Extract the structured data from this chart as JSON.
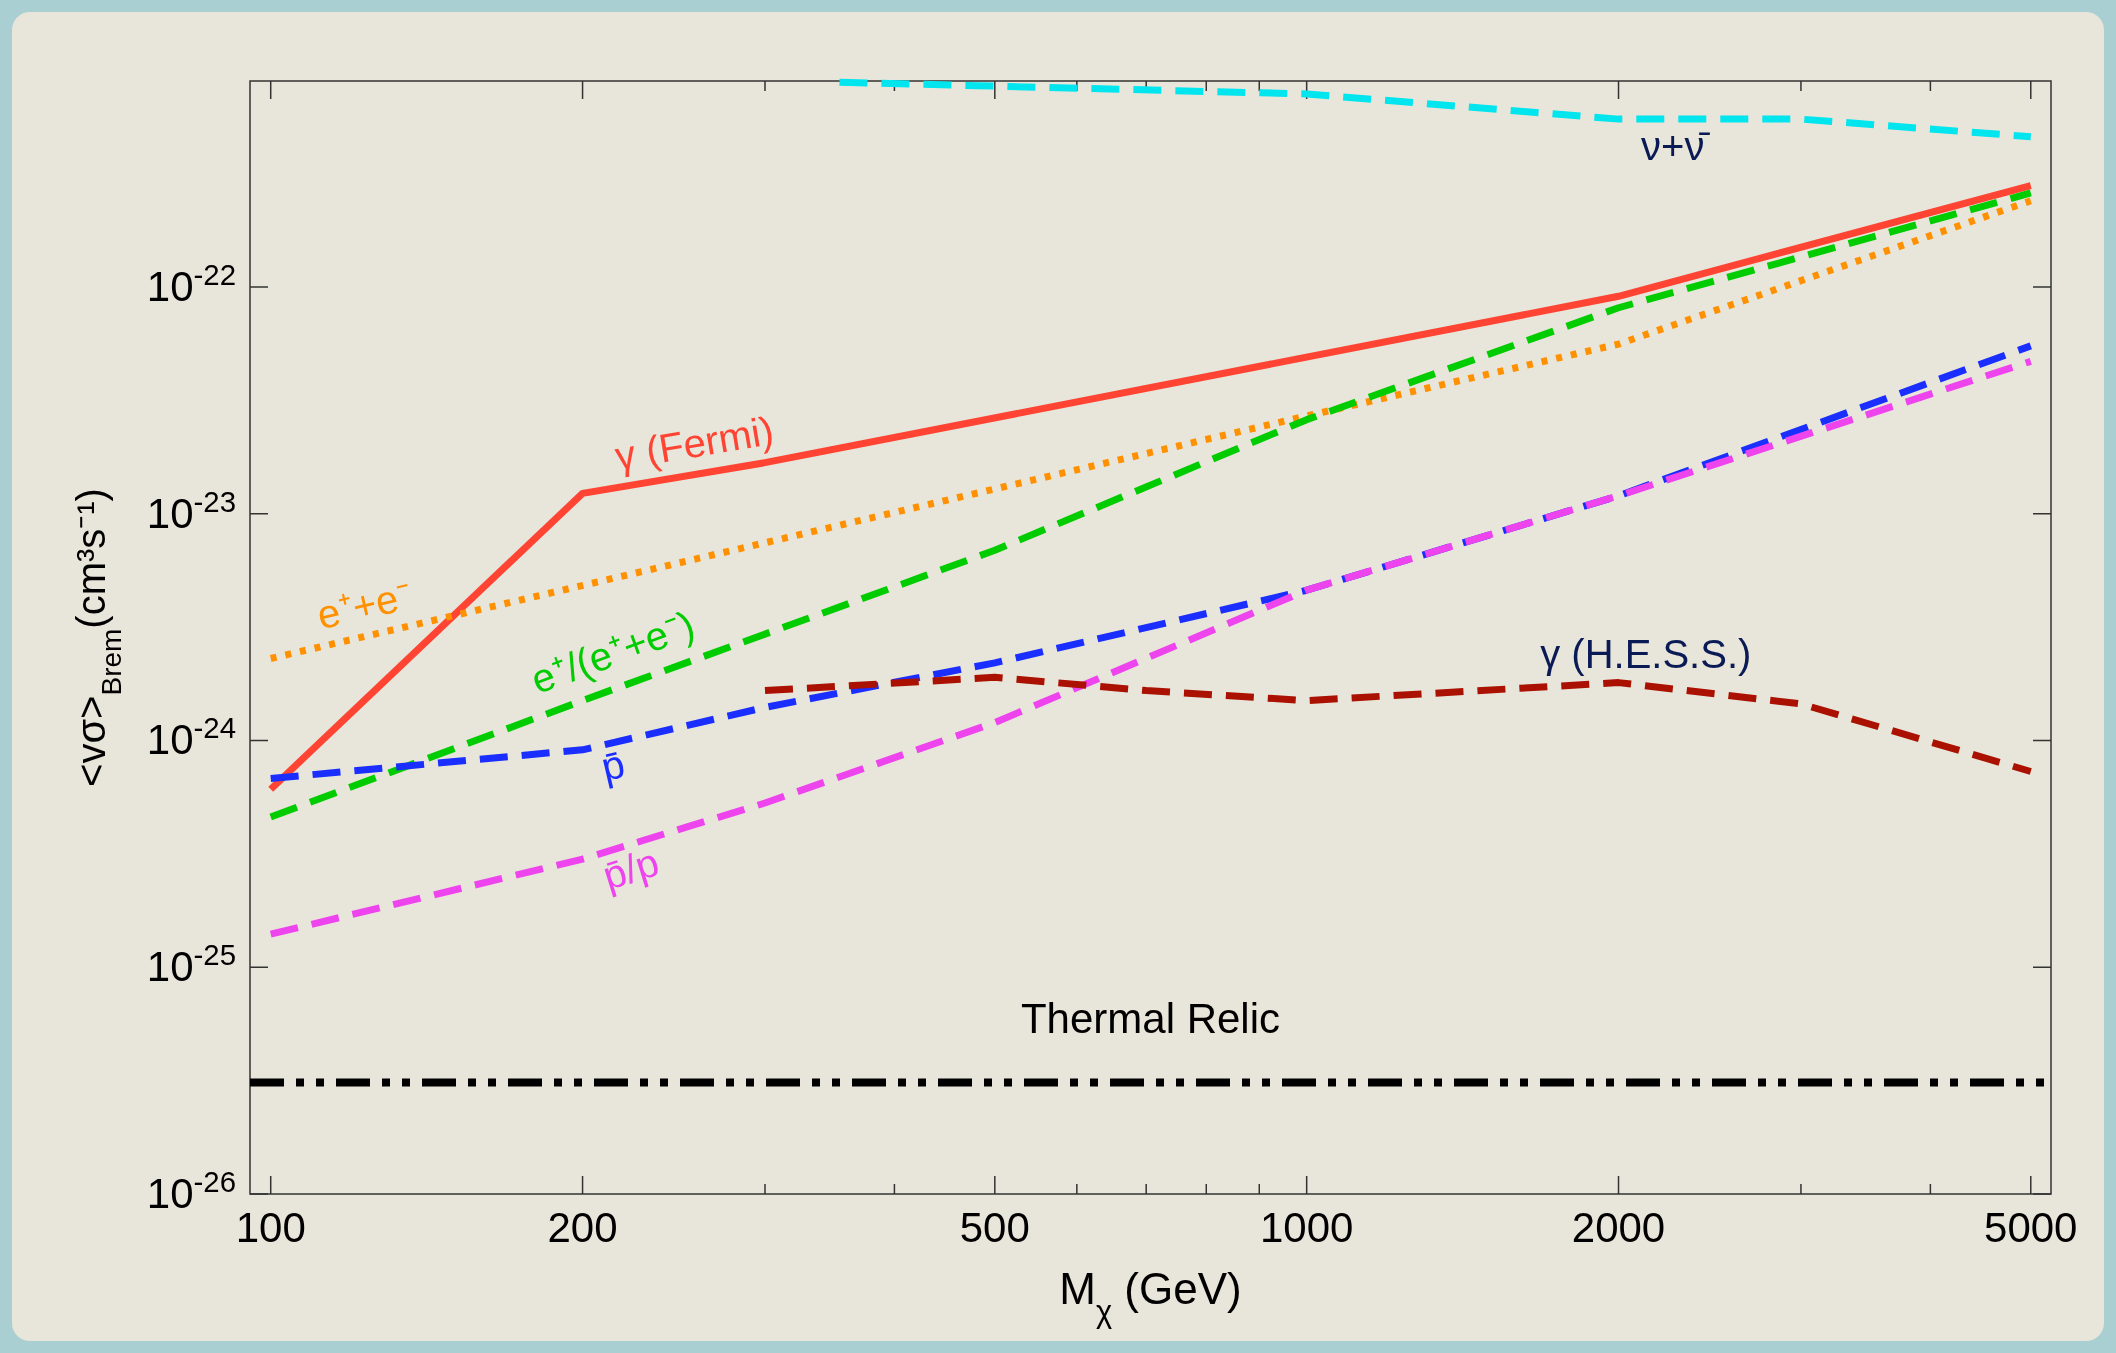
{
  "chart_data": {
    "type": "line",
    "xlabel": "M$_{χ}$ (GeV)",
    "ylabel": "<vσ>$_{Brem}$(cm³s⁻¹)",
    "log": "xy",
    "grid": false,
    "xlim": [
      95.5,
      5230
    ],
    "ylim": [
      1e-26,
      8.1e-22
    ],
    "xticks": [
      100,
      200,
      {
        "value": 300,
        "label": null
      },
      {
        "value": 400,
        "label": null
      },
      500,
      {
        "value": 600,
        "label": null
      },
      {
        "value": 700,
        "label": null
      },
      {
        "value": 800,
        "label": null
      },
      {
        "value": 900,
        "label": null
      },
      1000,
      2000,
      {
        "value": 3000,
        "label": null
      },
      {
        "value": 4000,
        "label": null
      },
      5000
    ],
    "yticks": [
      {
        "value": 1e-26,
        "label": "10$^{-26}$"
      },
      {
        "value": 1e-25,
        "label": "10$^{-25}$"
      },
      {
        "value": 1e-24,
        "label": "10$^{-24}$"
      },
      {
        "value": 1e-23,
        "label": "10$^{-23}$"
      },
      {
        "value": 1e-22,
        "label": "10$^{-22}$"
      }
    ],
    "series": [
      {
        "name": "γ (Fermi)",
        "color": "#ff4433",
        "line_style": "solid",
        "x": [
          100,
          200,
          300,
          2000,
          5000
        ],
        "values": [
          6.1e-25,
          1.23e-23,
          1.68e-23,
          9.1e-23,
          2.8e-22
        ]
      },
      {
        "name": "e⁺+e⁻",
        "color": "#ff9000",
        "line_style": "dotted",
        "x": [
          100,
          1000,
          2000,
          5000
        ],
        "values": [
          2.3e-24,
          2.7e-23,
          5.6e-23,
          2.4e-22
        ]
      },
      {
        "name": "e⁺/(e⁺+e⁻)",
        "color": "#00cc00",
        "line_style": "dashed",
        "x": [
          100,
          200,
          500,
          1000,
          2000,
          5000
        ],
        "values": [
          4.6e-25,
          1.5e-24,
          6.9e-24,
          2.6e-23,
          8.1e-23,
          2.6e-22
        ]
      },
      {
        "name": "p̄",
        "color": "#1a2eff",
        "line_style": "dashed",
        "x": [
          100,
          200,
          300,
          500,
          1000,
          2000,
          5000
        ],
        "values": [
          6.8e-25,
          9.1e-25,
          1.4e-24,
          2.2e-24,
          4.6e-24,
          1.2e-23,
          5.5e-23
        ]
      },
      {
        "name": "p̄/p",
        "color": "#ee44ee",
        "line_style": "dashed",
        "x": [
          100,
          200,
          300,
          500,
          1000,
          2000,
          5000
        ],
        "values": [
          1.4e-25,
          3e-25,
          5.3e-25,
          1.2e-24,
          4.6e-24,
          1.2e-23,
          4.7e-23
        ]
      },
      {
        "name": "γ (H.E.S.S.)",
        "color": "#aa1100",
        "line_style": "dashed",
        "x": [
          300,
          500,
          700,
          1000,
          2000,
          3000,
          5000
        ],
        "values": [
          1.66e-24,
          1.9e-24,
          1.66e-24,
          1.5e-24,
          1.8e-24,
          1.45e-24,
          7.3e-25
        ]
      },
      {
        "name": "ν+ν̄",
        "color": "#00e5ee",
        "line_style": "dashed",
        "x": [
          354,
          1000,
          2000,
          3000,
          5000
        ],
        "values": [
          8e-22,
          7.1e-22,
          5.5e-22,
          5.5e-22,
          4.6e-22
        ]
      }
    ],
    "ref_lines": [
      {
        "axis": "y",
        "value": 3.1e-26,
        "label": "Thermal Relic",
        "color": "#000000",
        "line_style": "dashed"
      }
    ]
  }
}
